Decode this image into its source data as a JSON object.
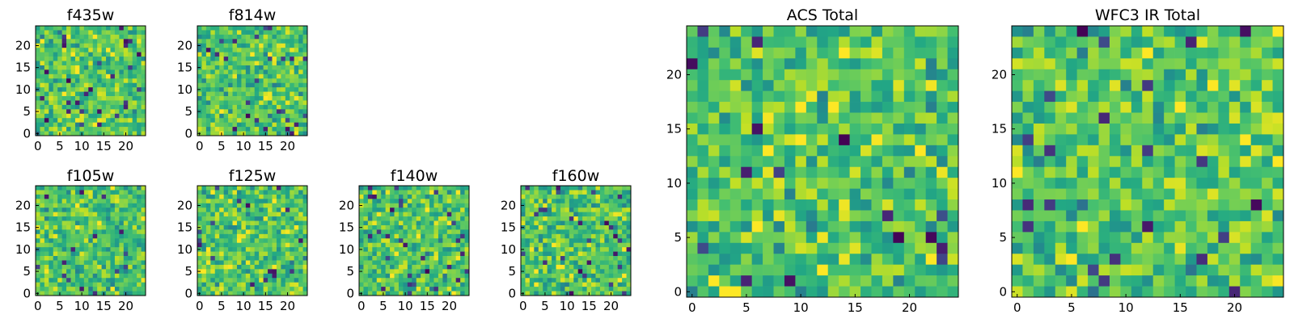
{
  "figure": {
    "colormap": "viridis",
    "note_values": "pixel intensities are not printed; charts show noise images",
    "colors": {
      "dark": "#440154",
      "mid": "#21918c",
      "light": "#fde725",
      "axis": "#000000"
    }
  },
  "chart_data": [
    {
      "type": "heatmap",
      "title": "f435w",
      "size": 25,
      "xticks": [
        "0",
        "5",
        "10",
        "15",
        "20"
      ],
      "yticks": [
        "0",
        "5",
        "10",
        "15",
        "20"
      ],
      "xlim": [
        0,
        24
      ],
      "ylim": [
        0,
        24
      ],
      "grid": false
    },
    {
      "type": "heatmap",
      "title": "f814w",
      "size": 25,
      "xticks": [
        "0",
        "5",
        "10",
        "15",
        "20"
      ],
      "yticks": [
        "0",
        "5",
        "10",
        "15",
        "20"
      ],
      "xlim": [
        0,
        24
      ],
      "ylim": [
        0,
        24
      ],
      "grid": false
    },
    {
      "type": "heatmap",
      "title": "f105w",
      "size": 25,
      "xticks": [
        "0",
        "5",
        "10",
        "15",
        "20"
      ],
      "yticks": [
        "0",
        "5",
        "10",
        "15",
        "20"
      ],
      "xlim": [
        0,
        24
      ],
      "ylim": [
        0,
        24
      ],
      "grid": false
    },
    {
      "type": "heatmap",
      "title": "f125w",
      "size": 25,
      "xticks": [
        "0",
        "5",
        "10",
        "15",
        "20"
      ],
      "yticks": [
        "0",
        "5",
        "10",
        "15",
        "20"
      ],
      "xlim": [
        0,
        24
      ],
      "ylim": [
        0,
        24
      ],
      "grid": false
    },
    {
      "type": "heatmap",
      "title": "f140w",
      "size": 25,
      "xticks": [
        "0",
        "5",
        "10",
        "15",
        "20"
      ],
      "yticks": [
        "0",
        "5",
        "10",
        "15",
        "20"
      ],
      "xlim": [
        0,
        24
      ],
      "ylim": [
        0,
        24
      ],
      "grid": false
    },
    {
      "type": "heatmap",
      "title": "f160w",
      "size": 25,
      "xticks": [
        "0",
        "5",
        "10",
        "15",
        "20"
      ],
      "yticks": [
        "0",
        "5",
        "10",
        "15",
        "20"
      ],
      "xlim": [
        0,
        24
      ],
      "ylim": [
        0,
        24
      ],
      "grid": false
    },
    {
      "type": "heatmap",
      "title": "ACS Total",
      "size": 25,
      "xticks": [
        "0",
        "5",
        "10",
        "15",
        "20"
      ],
      "yticks": [
        "0",
        "5",
        "10",
        "15",
        "20"
      ],
      "xlim": [
        0,
        24
      ],
      "ylim": [
        0,
        24
      ],
      "grid": false
    },
    {
      "type": "heatmap",
      "title": "WFC3 IR Total",
      "size": 25,
      "xticks": [
        "0",
        "5",
        "10",
        "15",
        "20"
      ],
      "yticks": [
        "0",
        "5",
        "10",
        "15",
        "20"
      ],
      "xlim": [
        0,
        24
      ],
      "ylim": [
        0,
        24
      ],
      "grid": false
    }
  ]
}
